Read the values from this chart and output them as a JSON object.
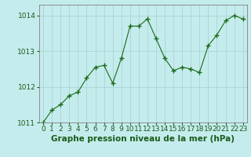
{
  "x": [
    0,
    1,
    2,
    3,
    4,
    5,
    6,
    7,
    8,
    9,
    10,
    11,
    12,
    13,
    14,
    15,
    16,
    17,
    18,
    19,
    20,
    21,
    22,
    23
  ],
  "y": [
    1011.0,
    1011.35,
    1011.5,
    1011.75,
    1011.85,
    1012.25,
    1012.55,
    1012.6,
    1012.1,
    1012.8,
    1013.7,
    1013.7,
    1013.9,
    1013.35,
    1012.8,
    1012.45,
    1012.55,
    1012.5,
    1012.4,
    1013.15,
    1013.45,
    1013.85,
    1014.0,
    1013.9
  ],
  "line_color": "#1a6b1a",
  "marker": "+",
  "marker_size": 4,
  "bg_color": "#c5eced",
  "grid_color": "#aad4d6",
  "ylim": [
    1011.0,
    1014.3
  ],
  "yticks": [
    1011,
    1012,
    1013,
    1014
  ],
  "xlim": [
    -0.5,
    23.5
  ],
  "xlabel": "Graphe pression niveau de la mer (hPa)",
  "xlabel_fontsize": 7.5,
  "tick_fontsize": 6.5,
  "tick_color": "#1a5c1a",
  "axis_color": "#808080"
}
